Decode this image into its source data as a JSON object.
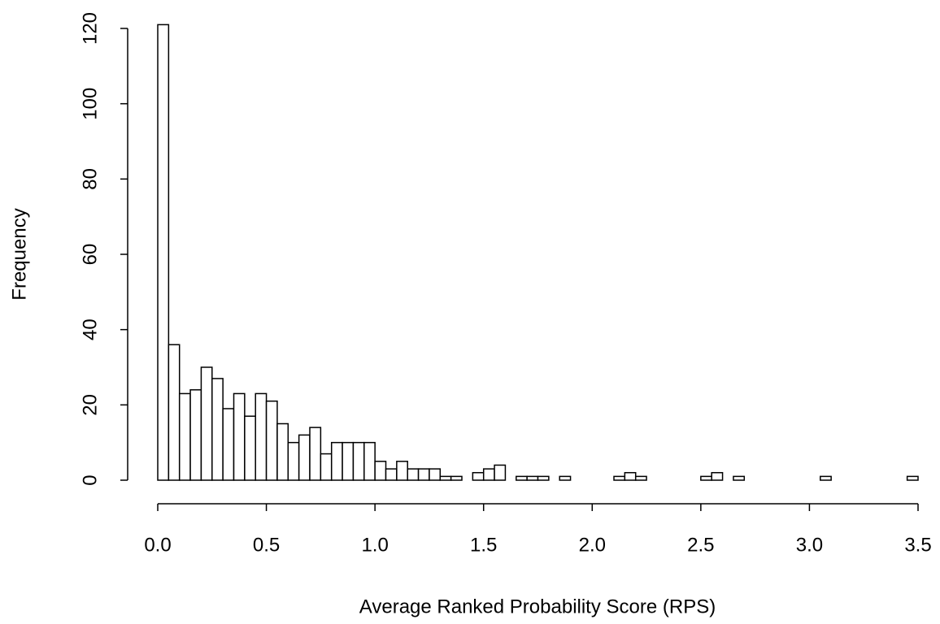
{
  "chart_data": {
    "type": "histogram",
    "x_label": "Average Ranked Probability Score (RPS)",
    "y_label": "Frequency",
    "bins": [
      0,
      0.05,
      0.1,
      0.15,
      0.2,
      0.25,
      0.3,
      0.35,
      0.4,
      0.45,
      0.5,
      0.55,
      0.6,
      0.65,
      0.7,
      0.75,
      0.8,
      0.85,
      0.9,
      0.95,
      1,
      1.05,
      1.1,
      1.15,
      1.2,
      1.25,
      1.3,
      1.35,
      1.4,
      1.45,
      1.5,
      1.55,
      1.6,
      1.65,
      1.7,
      1.75,
      1.8,
      1.85,
      1.9,
      1.95,
      2,
      2.05,
      2.1,
      2.15,
      2.2,
      2.25,
      2.3,
      2.35,
      2.4,
      2.45,
      2.5,
      2.55,
      2.6,
      2.65,
      2.7,
      2.75,
      2.8,
      2.85,
      2.9,
      2.95,
      3,
      3.05,
      3.1,
      3.15,
      3.2,
      3.25,
      3.3,
      3.35,
      3.4,
      3.45,
      3.5
    ],
    "counts": [
      121,
      36,
      23,
      24,
      30,
      27,
      19,
      23,
      17,
      23,
      21,
      15,
      10,
      12,
      14,
      7,
      10,
      10,
      10,
      10,
      5,
      3,
      5,
      3,
      3,
      3,
      1,
      1,
      0,
      2,
      3,
      4,
      0,
      1,
      1,
      1,
      0,
      1,
      0,
      0,
      0,
      0,
      1,
      2,
      1,
      0,
      0,
      0,
      0,
      0,
      1,
      2,
      0,
      1,
      0,
      0,
      0,
      0,
      0,
      0,
      0,
      1,
      0,
      0,
      0,
      0,
      0,
      0,
      0,
      1
    ],
    "color": "#ffffff",
    "xlim": [
      0,
      3.5
    ],
    "xticks": [
      {
        "value": 0,
        "label": "0.0"
      },
      0.5,
      {
        "value": 1,
        "label": "1.0"
      },
      1.5,
      {
        "value": 2,
        "label": "2.0"
      },
      2.5,
      {
        "value": 3,
        "label": "3.0"
      },
      3.5
    ],
    "ylim": [
      0,
      120
    ],
    "yticks": [
      0,
      20,
      40,
      60,
      80,
      100,
      120
    ],
    "grid": false
  }
}
